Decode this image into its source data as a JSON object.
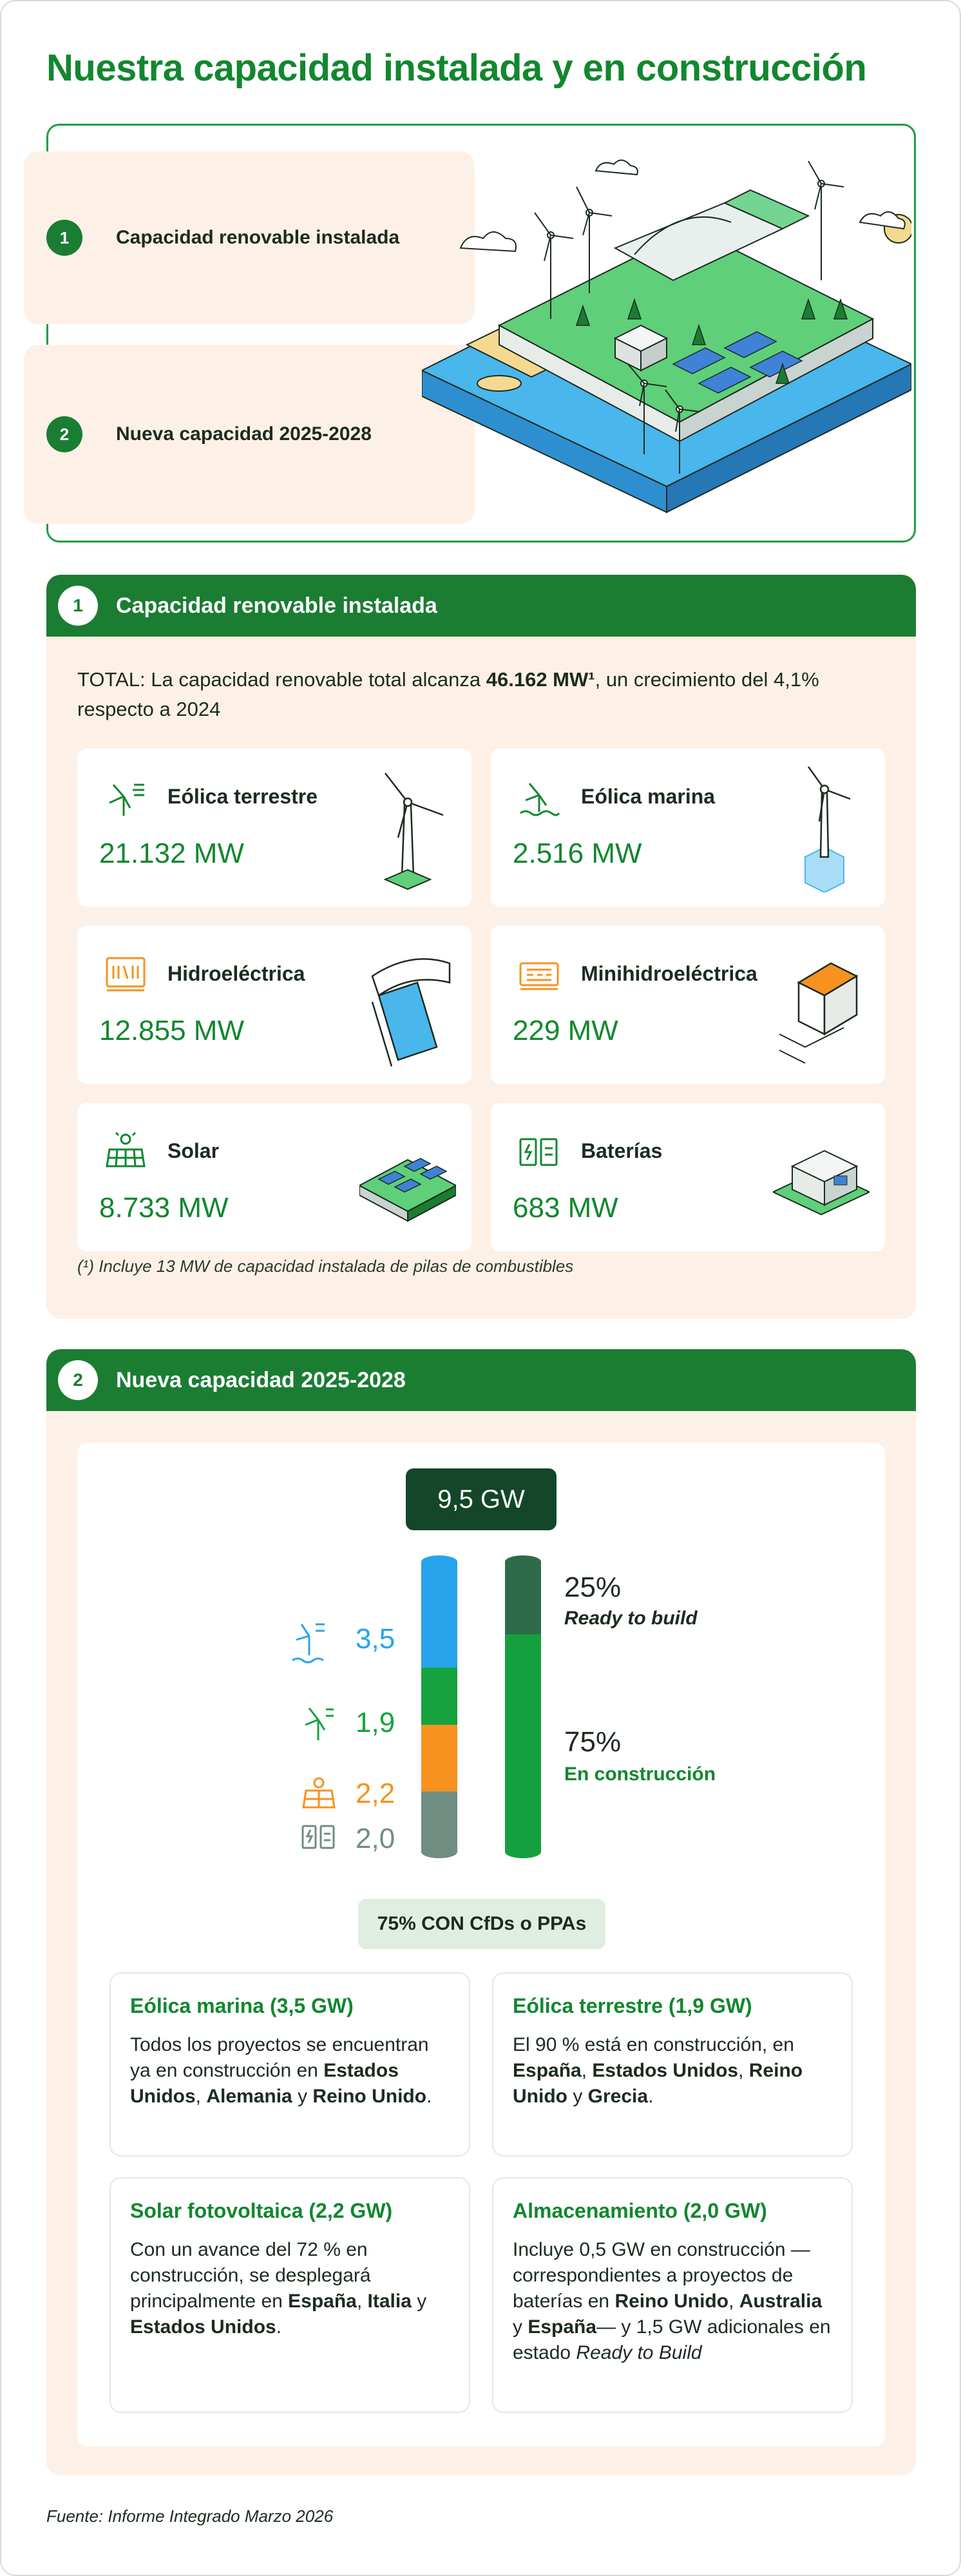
{
  "page": {
    "title_regular": "Nuestra capacidad ",
    "title_bold": "instalada y en construcción",
    "source": "Fuente: Informe Integrado Marzo 2026"
  },
  "hero": {
    "items": [
      {
        "num": "1",
        "label": "Capacidad renovable instalada"
      },
      {
        "num": "2",
        "label": "Nueva capacidad 2025-2028"
      }
    ]
  },
  "installed": {
    "num": "1",
    "title": "Capacidad renovable instalada",
    "total_prefix": "TOTAL:  La capacidad renovable total alcanza ",
    "total_value": "46.162 MW¹",
    "total_suffix": ", un crecimiento del 4,1% respecto a 2024",
    "cards": [
      {
        "name": "Eólica terrestre",
        "value": "21.132 MW",
        "icon": "wind-turbine-icon"
      },
      {
        "name": "Eólica marina",
        "value": "2.516 MW",
        "icon": "offshore-wind-icon"
      },
      {
        "name": "Hidroeléctrica",
        "value": "12.855 MW",
        "icon": "hydro-icon"
      },
      {
        "name": "Minihidroeléctrica",
        "value": "229 MW",
        "icon": "mini-hydro-icon"
      },
      {
        "name": "Solar",
        "value": "8.733 MW",
        "icon": "solar-panel-icon"
      },
      {
        "name": "Baterías",
        "value": "683 MW",
        "icon": "battery-icon"
      }
    ],
    "note": "(¹) Incluye 13 MW de capacidad instalada de pilas de combustibles"
  },
  "new_capacity": {
    "num": "2",
    "title": "Nueva capacidad 2025-2028",
    "total": "9,5 GW",
    "cfd_label": "75% CON CfDs o PPAs",
    "status": [
      {
        "pct": "25%",
        "label": "Ready to build",
        "color": "#2e6b4a"
      },
      {
        "pct": "75%",
        "label": "En construcción",
        "color": "#14a03f"
      }
    ],
    "cards": [
      {
        "title": "Eólica marina (3,5 GW)"
      },
      {
        "title": "Eólica terrestre (1,9 GW)"
      },
      {
        "title": "Solar fotovoltaica (2,2 GW)"
      },
      {
        "title": "Almacenamiento (2,0 GW)"
      }
    ]
  },
  "chart_data": {
    "type": "bar",
    "stacked": true,
    "total_label": "9,5 GW",
    "series": [
      {
        "name": "Eólica marina",
        "value": 3.5,
        "label": "3,5",
        "color": "#27a4ec"
      },
      {
        "name": "Eólica terrestre",
        "value": 1.9,
        "label": "1,9",
        "color": "#16a33f"
      },
      {
        "name": "Solar",
        "value": 2.2,
        "label": "2,2",
        "color": "#f7921e"
      },
      {
        "name": "Baterías",
        "value": 2.0,
        "label": "2,0",
        "color": "#6f8d80"
      }
    ],
    "status_series": [
      {
        "name": "Ready to build",
        "value": 25,
        "label": "25%",
        "color": "#2e6b4a"
      },
      {
        "name": "En construcción",
        "value": 75,
        "label": "75%",
        "color": "#14a03f"
      }
    ]
  }
}
